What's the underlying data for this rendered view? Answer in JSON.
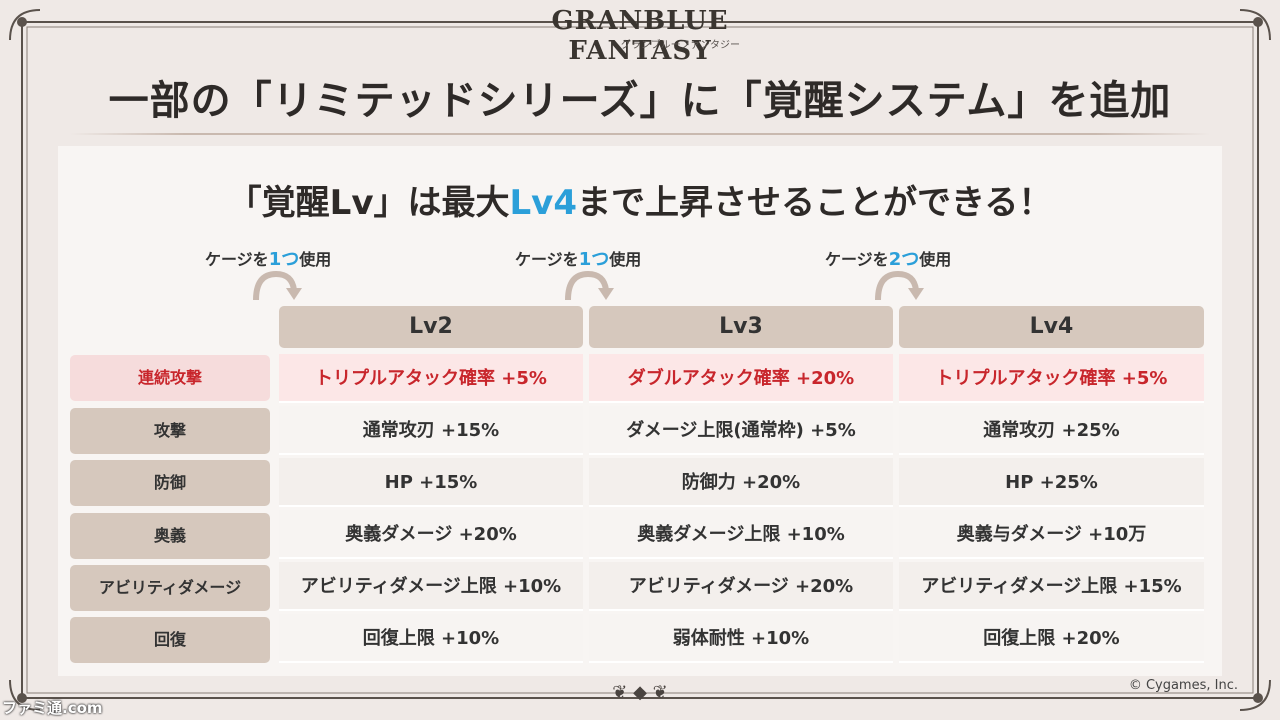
{
  "logo": {
    "main": "GRANBLUE FANTASY",
    "sub": "グランブルーファンタジー"
  },
  "title": "一部の「リミテッドシリーズ」に「覚醒システム」を追加",
  "subtitle": {
    "part1": "「覚醒Lv」は最大",
    "highlight": "Lv4",
    "part2": "まで上昇させることができる！"
  },
  "gauges": [
    {
      "pre": "ケージを",
      "num": "1つ",
      "post": "使用"
    },
    {
      "pre": "ケージを",
      "num": "1つ",
      "post": "使用"
    },
    {
      "pre": "ケージを",
      "num": "2つ",
      "post": "使用"
    }
  ],
  "levels": [
    "Lv2",
    "Lv3",
    "Lv4"
  ],
  "rows": [
    {
      "label": "連続攻撃",
      "values": [
        "トリプルアタック確率 +5%",
        "ダブルアタック確率 +20%",
        "トリプルアタック確率 +5%"
      ]
    },
    {
      "label": "攻撃",
      "values": [
        "通常攻刃 +15%",
        "ダメージ上限(通常枠) +5%",
        "通常攻刃 +25%"
      ]
    },
    {
      "label": "防御",
      "values": [
        "HP +15%",
        "防御力 +20%",
        "HP +25%"
      ]
    },
    {
      "label": "奥義",
      "values": [
        "奥義ダメージ +20%",
        "奥義ダメージ上限 +10%",
        "奥義与ダメージ +10万"
      ]
    },
    {
      "label": "アビリティダメージ",
      "values": [
        "アビリティダメージ上限 +10%",
        "アビリティダメージ +20%",
        "アビリティダメージ上限 +15%"
      ]
    },
    {
      "label": "回復",
      "values": [
        "回復上限 +10%",
        "弱体耐性 +10%",
        "回復上限 +20%"
      ]
    }
  ],
  "copyright": "© Cygames, Inc.",
  "watermark": "ファミ通.com",
  "colors": {
    "accent_blue": "#2b9fd9",
    "accent_red": "#c8262c",
    "header_tan": "#d6c8bd"
  }
}
